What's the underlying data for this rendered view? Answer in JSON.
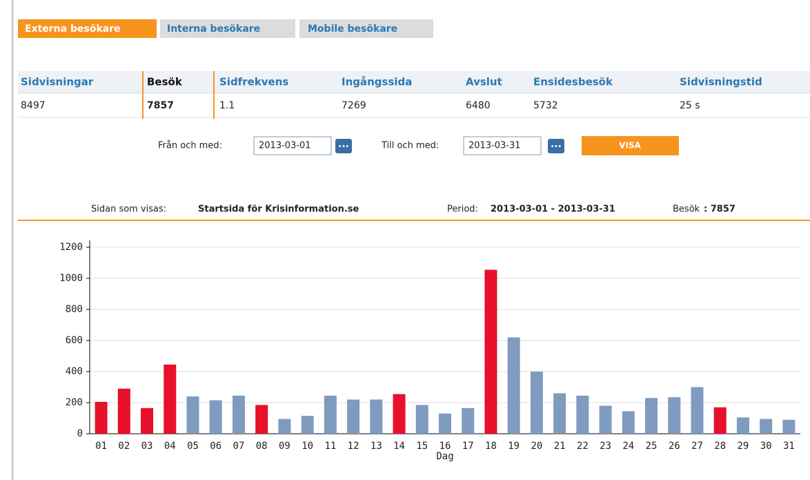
{
  "tabs": [
    "Externa besökare",
    "Interna besökare",
    "Mobile besökare"
  ],
  "table": {
    "headers": [
      "Sidvisningar",
      "Besök",
      "Sidfrekvens",
      "Ingångssida",
      "Avslut",
      "Ensidesbesök",
      "Sidvisningstid"
    ],
    "row": [
      "8497",
      "7857",
      "1.1",
      "7269",
      "6480",
      "5732",
      "25 s"
    ]
  },
  "date_filter": {
    "from_label": "Från och med:",
    "from_value": "2013-03-01",
    "to_label": "Till och med:",
    "to_value": "2013-03-31",
    "picker": "...",
    "button": "VISA"
  },
  "info": {
    "page_label": "Sidan som visas:",
    "page_value": "Startsida för Krisinformation.se",
    "period_label": "Period:",
    "period_value": "2013-03-01 - 2013-03-31",
    "visits_label": "Besök",
    "visits_value": ": 7857"
  },
  "chart_data": {
    "type": "bar",
    "categories": [
      "01",
      "02",
      "03",
      "04",
      "05",
      "06",
      "07",
      "08",
      "09",
      "10",
      "11",
      "12",
      "13",
      "14",
      "15",
      "16",
      "17",
      "18",
      "19",
      "20",
      "21",
      "22",
      "23",
      "24",
      "25",
      "26",
      "27",
      "28",
      "29",
      "30",
      "31"
    ],
    "values": [
      205,
      290,
      165,
      445,
      240,
      215,
      245,
      185,
      95,
      115,
      245,
      220,
      220,
      255,
      185,
      130,
      165,
      1055,
      620,
      400,
      260,
      245,
      180,
      145,
      230,
      235,
      300,
      170,
      105,
      95,
      90
    ],
    "colors": [
      "#e8102a",
      "#e8102a",
      "#e8102a",
      "#e8102a",
      "#7f9bbf",
      "#7f9bbf",
      "#7f9bbf",
      "#e8102a",
      "#7f9bbf",
      "#7f9bbf",
      "#7f9bbf",
      "#7f9bbf",
      "#7f9bbf",
      "#e8102a",
      "#7f9bbf",
      "#7f9bbf",
      "#7f9bbf",
      "#e8102a",
      "#7f9bbf",
      "#7f9bbf",
      "#7f9bbf",
      "#7f9bbf",
      "#7f9bbf",
      "#7f9bbf",
      "#7f9bbf",
      "#7f9bbf",
      "#7f9bbf",
      "#e8102a",
      "#7f9bbf",
      "#7f9bbf",
      "#7f9bbf"
    ],
    "xlabel": "Dag",
    "ylim": [
      0,
      1200
    ],
    "yticks": [
      0,
      200,
      400,
      600,
      800,
      1000,
      1200
    ],
    "grid": true
  }
}
